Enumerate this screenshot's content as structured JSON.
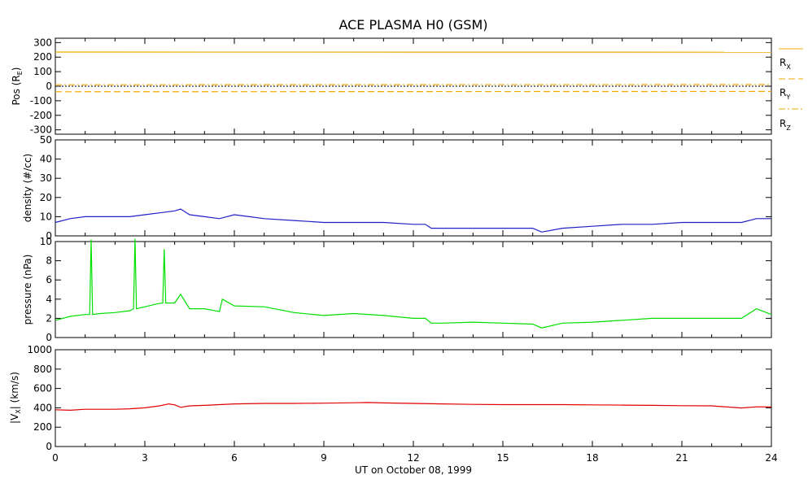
{
  "title": "ACE PLASMA H0 (GSM)",
  "chart_data": [
    {
      "type": "line",
      "id": "pos",
      "ylabel": "Pos (R",
      "ylabel_sub": "E",
      "ylabel_end": ")",
      "ylim": [
        -330,
        330
      ],
      "yticks": [
        300,
        200,
        100,
        0,
        -100,
        -200,
        -300
      ],
      "xlim": [
        0,
        24
      ],
      "series": [
        {
          "name": "R",
          "name_sub": "X",
          "color": "#f2a900",
          "style": "solid",
          "x": [
            0,
            24
          ],
          "y": [
            235,
            234
          ]
        },
        {
          "name": "R",
          "name_sub": "Y",
          "color": "#f2a900",
          "style": "dashed",
          "x": [
            0,
            24
          ],
          "y": [
            -38,
            -36
          ]
        },
        {
          "name": "R",
          "name_sub": "Z",
          "color": "#f2a900",
          "style": "dashdot",
          "x": [
            0,
            24
          ],
          "y": [
            10,
            11
          ]
        }
      ],
      "zero_line": true
    },
    {
      "type": "line",
      "id": "density",
      "ylabel": "density (#/cc)",
      "ylim": [
        0,
        50
      ],
      "yticks": [
        50,
        40,
        30,
        20,
        10,
        0
      ],
      "xlim": [
        0,
        24
      ],
      "series": [
        {
          "color": "#2020c8",
          "x": [
            0,
            0.5,
            1,
            1.5,
            2,
            2.5,
            3,
            3.5,
            4,
            4.2,
            4.5,
            5,
            5.5,
            6,
            6.5,
            7,
            8,
            9,
            10,
            11,
            12,
            12.4,
            12.6,
            13,
            14,
            15,
            16,
            16.3,
            17,
            18,
            19,
            20,
            21,
            22,
            23,
            23.5,
            24
          ],
          "y": [
            7,
            9,
            10,
            10,
            10,
            10,
            11,
            12,
            13,
            14,
            11,
            10,
            9,
            11,
            10,
            9,
            8,
            7,
            7,
            7,
            6,
            6,
            4,
            4,
            4,
            4,
            4,
            2,
            4,
            5,
            6,
            6,
            7,
            7,
            7,
            9,
            9
          ]
        }
      ]
    },
    {
      "type": "line",
      "id": "pressure",
      "ylabel": "pressure (nPa)",
      "ylim": [
        0,
        10
      ],
      "yticks": [
        10,
        8,
        6,
        4,
        2,
        0
      ],
      "xlim": [
        0,
        24
      ],
      "series": [
        {
          "color": "#00e000",
          "x": [
            0,
            0.5,
            1,
            1.15,
            1.2,
            1.25,
            1.5,
            2,
            2.5,
            2.62,
            2.67,
            2.72,
            3,
            3.4,
            3.6,
            3.65,
            3.7,
            4,
            4.2,
            4.5,
            5,
            5.5,
            5.6,
            6,
            7,
            8,
            9,
            10,
            11,
            12,
            12.4,
            12.6,
            13,
            14,
            15,
            16,
            16.3,
            17,
            18,
            19,
            20,
            21,
            22,
            23,
            23.5,
            24
          ],
          "y": [
            1.8,
            2.2,
            2.4,
            2.4,
            10.2,
            2.4,
            2.5,
            2.6,
            2.8,
            3.0,
            10.3,
            3.0,
            3.2,
            3.5,
            3.6,
            9.2,
            3.6,
            3.6,
            4.5,
            3.0,
            3.0,
            2.7,
            4.0,
            3.3,
            3.2,
            2.6,
            2.3,
            2.5,
            2.3,
            2.0,
            2.0,
            1.5,
            1.5,
            1.6,
            1.5,
            1.4,
            1.0,
            1.5,
            1.6,
            1.8,
            2.0,
            2.0,
            2.0,
            2.0,
            3.0,
            2.4
          ]
        }
      ]
    },
    {
      "type": "line",
      "id": "vx",
      "ylabel": "|V",
      "ylabel_sub": "X",
      "ylabel_end": "| (km/s)",
      "ylim": [
        0,
        1000
      ],
      "yticks": [
        1000,
        800,
        600,
        400,
        200,
        0
      ],
      "xlim": [
        0,
        24
      ],
      "xticks": [
        0,
        3,
        6,
        9,
        12,
        15,
        18,
        21,
        24
      ],
      "xlabel": "UT on October 08, 1999",
      "series": [
        {
          "color": "#e00000",
          "x": [
            0,
            0.5,
            1,
            1.5,
            2,
            2.5,
            3,
            3.5,
            3.8,
            4,
            4.2,
            4.5,
            5,
            6,
            7,
            8,
            9,
            10,
            10.5,
            11,
            12,
            13,
            14,
            15,
            16,
            17,
            18,
            19,
            20,
            21,
            22,
            23,
            23.5,
            24
          ],
          "y": [
            380,
            375,
            385,
            385,
            385,
            390,
            400,
            420,
            440,
            430,
            405,
            420,
            425,
            440,
            445,
            445,
            448,
            452,
            455,
            450,
            445,
            440,
            435,
            433,
            433,
            433,
            430,
            428,
            425,
            422,
            420,
            398,
            410,
            408
          ]
        }
      ]
    }
  ]
}
